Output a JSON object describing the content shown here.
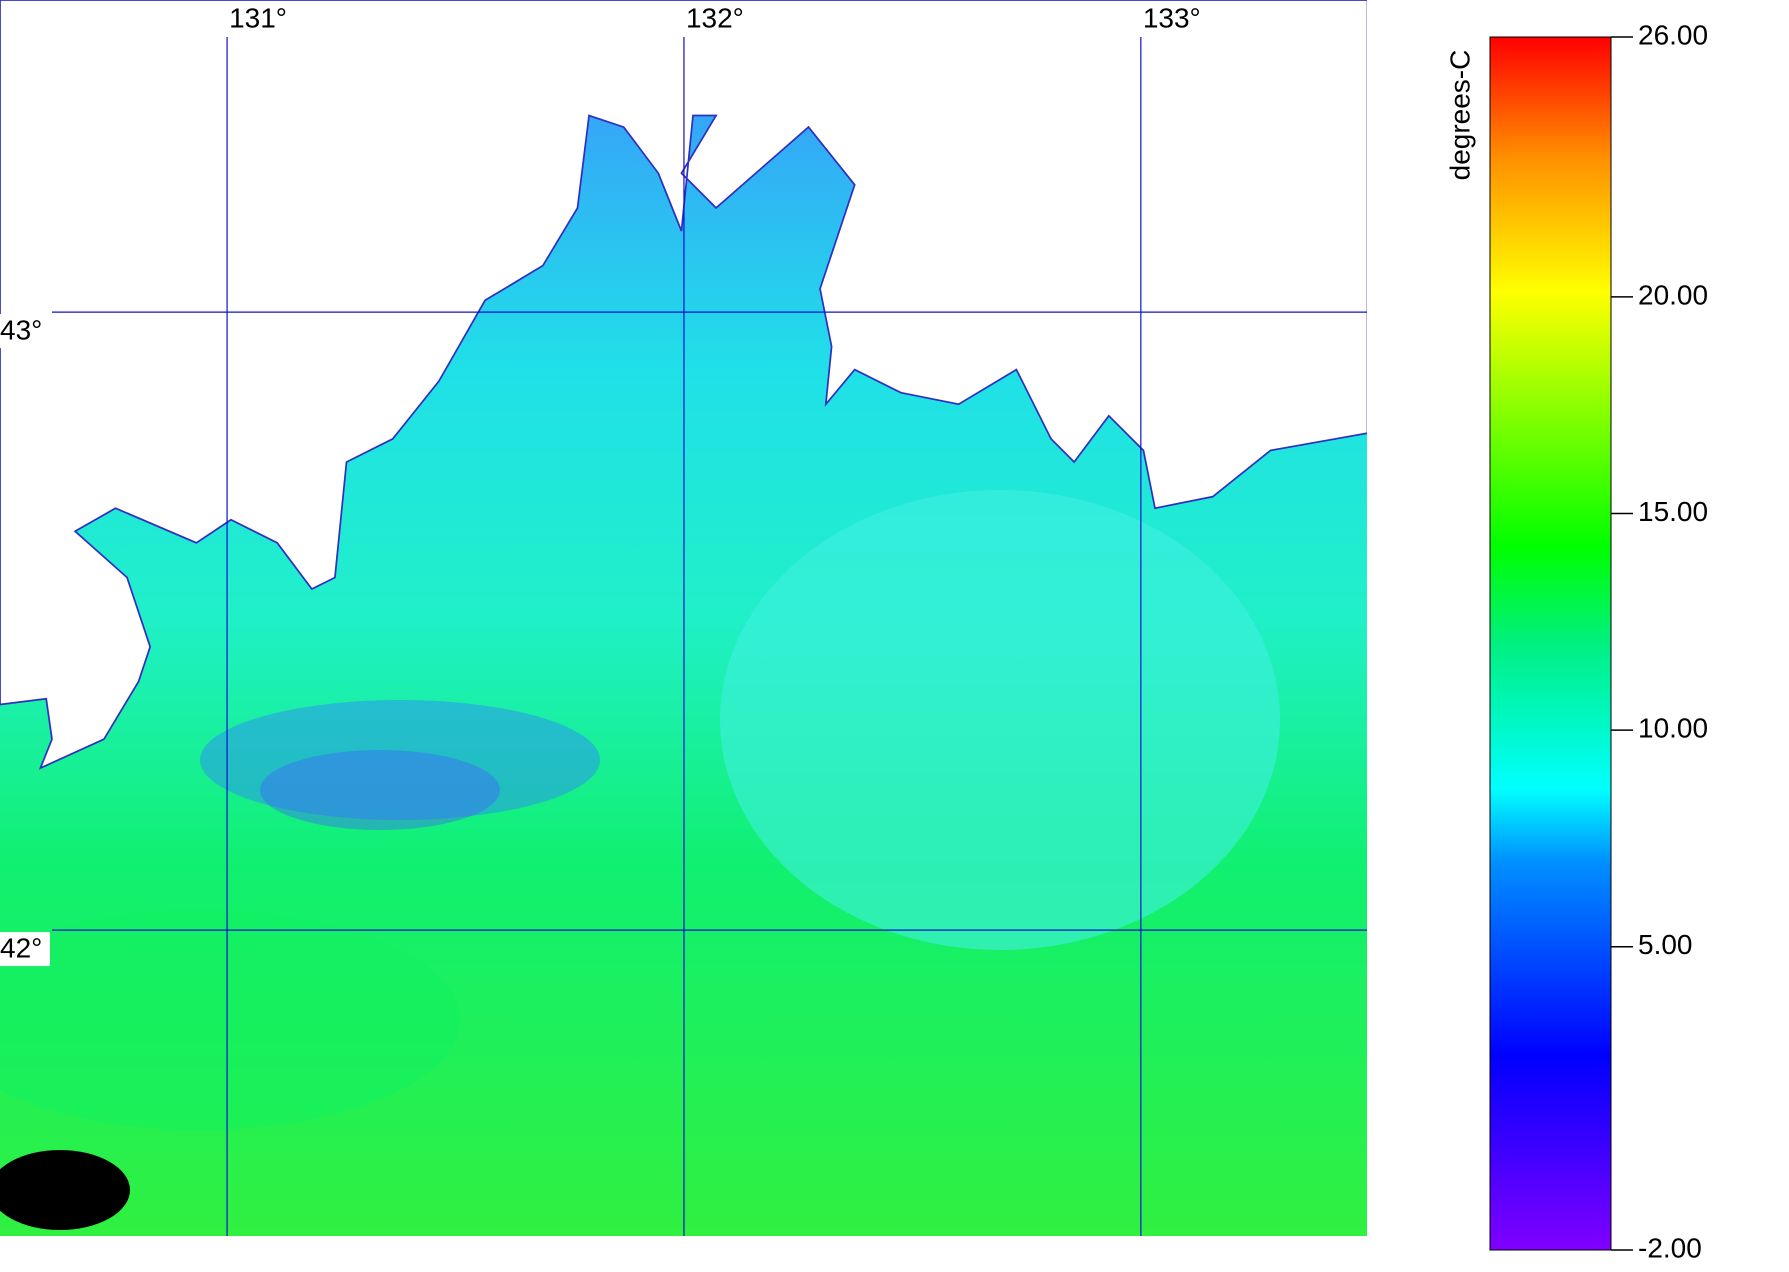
{
  "map": {
    "lonlim": [
      130.503,
      133.495
    ],
    "latlim": [
      41.505,
      43.505
    ],
    "lon_ticks": [
      {
        "value": 131,
        "label": "131°"
      },
      {
        "value": 132,
        "label": "132°"
      },
      {
        "value": 133,
        "label": "133°"
      }
    ],
    "lat_ticks": [
      {
        "value": 43,
        "label": "43°"
      },
      {
        "value": 42,
        "label": "42°"
      }
    ],
    "grid_color": "#1010d0"
  },
  "colorbar": {
    "label": "degrees-C",
    "lim": [
      -2,
      26
    ],
    "ticks": [
      {
        "value": 26,
        "label": "26.00"
      },
      {
        "value": 20,
        "label": "20.00"
      },
      {
        "value": 15,
        "label": "15.00"
      },
      {
        "value": 10,
        "label": "10.00"
      },
      {
        "value": 5,
        "label": "5.00"
      },
      {
        "value": -2,
        "label": "-2.00"
      }
    ]
  }
}
